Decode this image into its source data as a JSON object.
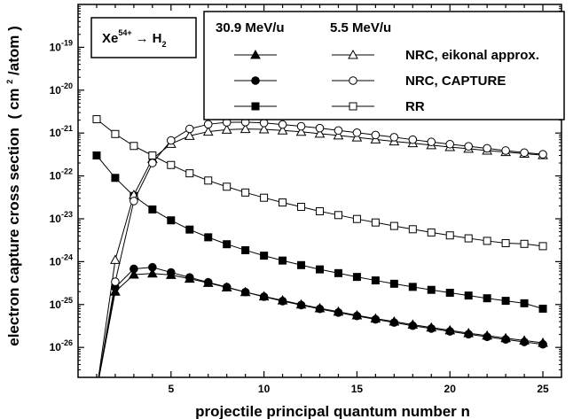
{
  "chart_data": {
    "type": "scatter",
    "x_label": "projectile principal quantum number n",
    "y_label": "electron capture cross section",
    "y_label_unit_pre": "( cm",
    "y_label_unit_sup": "2",
    "y_label_unit_post": "/atom )",
    "y_scale": "log",
    "x_range": [
      0,
      26
    ],
    "y_range": [
      2e-27,
      1e-18
    ],
    "x_ticks": [
      5,
      10,
      15,
      20,
      25
    ],
    "y_ticks": [
      {
        "value": 1e-19,
        "base": "10",
        "exp": "-19"
      },
      {
        "value": 1e-20,
        "base": "10",
        "exp": "-20"
      },
      {
        "value": 1e-21,
        "base": "10",
        "exp": "-21"
      },
      {
        "value": 1e-22,
        "base": "10",
        "exp": "-22"
      },
      {
        "value": 1e-23,
        "base": "10",
        "exp": "-23"
      },
      {
        "value": 1e-24,
        "base": "10",
        "exp": "-24"
      },
      {
        "value": 1e-25,
        "base": "10",
        "exp": "-25"
      },
      {
        "value": 1e-26,
        "base": "10",
        "exp": "-26"
      }
    ],
    "reaction_label": {
      "ion": "Xe",
      "charge": "54+",
      "arrow": "→",
      "target": "H",
      "target_sub": "2"
    },
    "legend": {
      "energy_headers": [
        "30.9 MeV/u",
        "5.5 MeV/u"
      ],
      "rows": [
        {
          "label": "NRC, eikonal approx.",
          "marker": "triangle"
        },
        {
          "label": "NRC, CAPTURE",
          "marker": "circle"
        },
        {
          "label": "RR",
          "marker": "square"
        }
      ]
    },
    "series": [
      {
        "energy": "30.9 MeV/u",
        "marker": "triangle",
        "filled": true,
        "x": [
          1,
          2,
          3,
          4,
          5,
          6,
          7,
          8,
          9,
          10,
          11,
          12,
          13,
          14,
          15,
          16,
          17,
          18,
          19,
          20,
          21,
          22,
          23,
          24,
          25
        ],
        "y": [
          1e-27,
          2e-25,
          5e-25,
          5.3e-25,
          4.9e-25,
          4e-25,
          3.2e-25,
          2.5e-25,
          1.95e-25,
          1.55e-25,
          1.25e-25,
          1e-25,
          8.2e-26,
          6.8e-26,
          5.6e-26,
          4.7e-26,
          4e-26,
          3.4e-26,
          2.9e-26,
          2.5e-26,
          2.15e-26,
          1.88e-26,
          1.64e-26,
          1.45e-26,
          1.28e-26
        ]
      },
      {
        "energy": "30.9 MeV/u",
        "marker": "circle",
        "filled": true,
        "x": [
          1,
          2,
          3,
          4,
          5,
          6,
          7,
          8,
          9,
          10,
          11,
          12,
          13,
          14,
          15,
          16,
          17,
          18,
          19,
          20,
          21,
          22,
          23,
          24,
          25
        ],
        "y": [
          1e-27,
          2.5e-25,
          6.8e-25,
          7.4e-25,
          5.6e-25,
          4.3e-25,
          3.3e-25,
          2.55e-25,
          1.95e-25,
          1.52e-25,
          1.2e-25,
          9.7e-26,
          7.9e-26,
          6.5e-26,
          5.4e-26,
          4.5e-26,
          3.8e-26,
          3.2e-26,
          2.75e-26,
          2.36e-26,
          2.03e-26,
          1.76e-26,
          1.53e-26,
          1.34e-26,
          1.18e-26
        ]
      },
      {
        "energy": "30.9 MeV/u",
        "marker": "square",
        "filled": true,
        "x": [
          1,
          2,
          3,
          4,
          5,
          6,
          7,
          8,
          9,
          10,
          11,
          12,
          13,
          14,
          15,
          16,
          17,
          18,
          19,
          20,
          21,
          22,
          23,
          24,
          25
        ],
        "y": [
          3e-22,
          9e-23,
          3.4e-23,
          1.65e-23,
          9.2e-24,
          5.6e-24,
          3.7e-24,
          2.55e-24,
          1.85e-24,
          1.38e-24,
          1.06e-24,
          8.3e-25,
          6.6e-25,
          5.4e-25,
          4.4e-25,
          3.65e-25,
          3.05e-25,
          2.58e-25,
          2.2e-25,
          1.88e-25,
          1.62e-25,
          1.4e-25,
          1.22e-25,
          1.07e-25,
          8e-26
        ]
      },
      {
        "energy": "5.5 MeV/u",
        "marker": "triangle",
        "filled": false,
        "x": [
          1,
          2,
          3,
          4,
          5,
          6,
          7,
          8,
          9,
          10,
          11,
          12,
          13,
          14,
          15,
          16,
          17,
          18,
          19,
          20,
          21,
          22,
          23,
          24,
          25
        ],
        "y": [
          1e-27,
          1.1e-24,
          3.6e-23,
          2.5e-22,
          5.6e-22,
          8.6e-22,
          1.08e-21,
          1.2e-21,
          1.24e-21,
          1.22e-21,
          1.15e-21,
          1.07e-21,
          9.7e-22,
          8.8e-22,
          7.9e-22,
          7.1e-22,
          6.4e-22,
          5.8e-22,
          5.2e-22,
          4.7e-22,
          4.3e-22,
          3.9e-22,
          3.6e-22,
          3.3e-22,
          3.05e-22
        ]
      },
      {
        "energy": "5.5 MeV/u",
        "marker": "circle",
        "filled": false,
        "x": [
          1,
          2,
          3,
          4,
          5,
          6,
          7,
          8,
          9,
          10,
          11,
          12,
          13,
          14,
          15,
          16,
          17,
          18,
          19,
          20,
          21,
          22,
          23,
          24,
          25
        ],
        "y": [
          1e-27,
          3.4e-25,
          2.6e-23,
          2e-22,
          6.7e-22,
          1.25e-21,
          1.6e-21,
          1.78e-21,
          1.8e-21,
          1.72e-21,
          1.58e-21,
          1.44e-21,
          1.3e-21,
          1.15e-21,
          1.02e-21,
          9e-22,
          8e-22,
          7e-22,
          6.2e-22,
          5.5e-22,
          4.9e-22,
          4.4e-22,
          3.9e-22,
          3.5e-22,
          3.2e-22
        ]
      },
      {
        "energy": "5.5 MeV/u",
        "marker": "square",
        "filled": false,
        "x": [
          1,
          2,
          3,
          4,
          5,
          6,
          7,
          8,
          9,
          10,
          11,
          12,
          13,
          14,
          15,
          16,
          17,
          18,
          19,
          20,
          21,
          22,
          23,
          24,
          25
        ],
        "y": [
          2.1e-21,
          9.5e-22,
          5e-22,
          3e-22,
          1.8e-22,
          1.15e-22,
          7.8e-23,
          5.6e-23,
          4.1e-23,
          3.1e-23,
          2.4e-23,
          1.9e-23,
          1.5e-23,
          1.22e-23,
          9.9e-24,
          8.2e-24,
          6.8e-24,
          5.7e-24,
          4.8e-24,
          4.1e-24,
          3.5e-24,
          3.05e-24,
          2.7e-24,
          2.6e-24,
          2.3e-24
        ]
      }
    ]
  }
}
